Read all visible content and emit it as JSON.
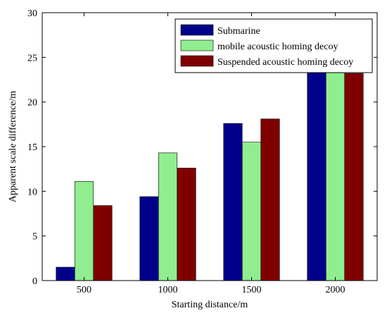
{
  "chart_data": {
    "type": "bar",
    "title": "",
    "xlabel": "Starting distance/m",
    "ylabel": "Apparent scale difference/m",
    "categories": [
      "500",
      "1000",
      "1500",
      "2000"
    ],
    "ylim": [
      0,
      30
    ],
    "yticks": [
      "0",
      "5",
      "10",
      "15",
      "20",
      "25",
      "30"
    ],
    "grid": false,
    "legend_position": "top-right",
    "series": [
      {
        "name": "Submarine",
        "color": "#00008b",
        "values": [
          1.5,
          9.4,
          17.6,
          24.2
        ]
      },
      {
        "name": "mobile acoustic homing decoy",
        "color": "#90ee90",
        "values": [
          11.1,
          14.3,
          15.5,
          24.2
        ]
      },
      {
        "name": "Suspended acoustic homing decoy",
        "color": "#800000",
        "values": [
          8.4,
          12.6,
          18.1,
          23.2
        ]
      }
    ]
  }
}
